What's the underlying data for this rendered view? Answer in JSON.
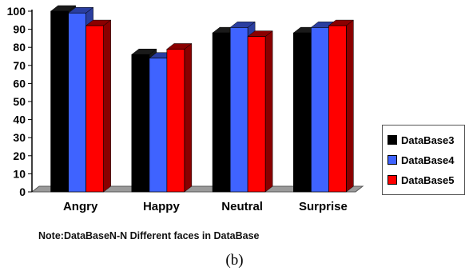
{
  "chart_data": {
    "type": "bar",
    "categories": [
      "Angry",
      "Happy",
      "Neutral",
      "Surprise"
    ],
    "series": [
      {
        "name": "DataBase3",
        "values": [
          100,
          76,
          88,
          88
        ]
      },
      {
        "name": "DataBase4",
        "values": [
          99,
          74,
          91,
          91
        ]
      },
      {
        "name": "DataBase5",
        "values": [
          92,
          79,
          86,
          92
        ]
      }
    ],
    "ylim": [
      0,
      100
    ],
    "yticks": [
      0,
      10,
      20,
      30,
      40,
      50,
      60,
      70,
      80,
      90,
      100
    ],
    "grid": false,
    "legend": "right",
    "colors": {
      "DataBase3": "#000000",
      "DataBase4": "#3f63ff",
      "DataBase5": "#ff0000"
    },
    "side_colors": {
      "DataBase3": "#1a1a1a",
      "DataBase4": "#2a3ea0",
      "DataBase5": "#8a0000"
    },
    "note": "Note:DataBaseN-N Different faces in DataBase"
  },
  "caption": "(b)"
}
